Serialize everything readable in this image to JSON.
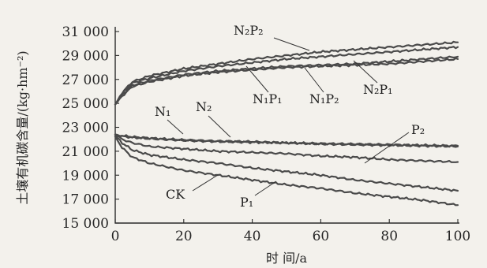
{
  "chart_data": {
    "type": "line",
    "title": "",
    "xlabel": "时 间/a",
    "ylabel": "土壤有机碳含量/(kg·hm⁻²)",
    "xlim": [
      0,
      100
    ],
    "ylim": [
      15000,
      31000
    ],
    "xticks": [
      0,
      20,
      40,
      60,
      80,
      100
    ],
    "yticks": [
      15000,
      17000,
      19000,
      21000,
      23000,
      25000,
      27000,
      29000,
      31000
    ],
    "xtick_labels": [
      "0",
      "20",
      "40",
      "60",
      "80",
      "100"
    ],
    "ytick_labels": [
      "15 000",
      "17 000",
      "19 000",
      "21 000",
      "23 000",
      "25 000",
      "27 000",
      "29 000",
      "31 000"
    ],
    "grid": false,
    "legend": "none",
    "series": [
      {
        "name": "N₂P₂",
        "color": "#4a4a4a",
        "x": [
          0,
          2,
          5,
          10,
          20,
          30,
          40,
          50,
          60,
          70,
          80,
          90,
          100
        ],
        "values": [
          24900,
          25900,
          26800,
          27300,
          27900,
          28300,
          28700,
          29000,
          29300,
          29500,
          29700,
          29900,
          30100
        ]
      },
      {
        "name": "N₂P₁",
        "color": "#4a4a4a",
        "x": [
          0,
          2,
          5,
          10,
          20,
          30,
          40,
          50,
          60,
          70,
          80,
          90,
          100
        ],
        "values": [
          24900,
          25800,
          26700,
          27100,
          27700,
          28100,
          28400,
          28700,
          28900,
          29100,
          29300,
          29500,
          29700
        ]
      },
      {
        "name": "N₁P₁",
        "color": "#4a4a4a",
        "x": [
          0,
          2,
          5,
          10,
          20,
          30,
          40,
          50,
          60,
          70,
          80,
          90,
          100
        ],
        "values": [
          24900,
          25700,
          26500,
          26900,
          27400,
          27700,
          27900,
          28100,
          28200,
          28300,
          28500,
          28700,
          28900
        ]
      },
      {
        "name": "N₁P₂",
        "color": "#4a4a4a",
        "x": [
          0,
          2,
          5,
          10,
          20,
          30,
          40,
          50,
          60,
          70,
          80,
          90,
          100
        ],
        "values": [
          24900,
          25600,
          26400,
          26800,
          27300,
          27600,
          27800,
          28000,
          28100,
          28200,
          28300,
          28500,
          28700
        ]
      },
      {
        "name": "N₁",
        "color": "#4a4a4a",
        "x": [
          0,
          2,
          5,
          10,
          20,
          30,
          40,
          50,
          60,
          70,
          80,
          90,
          100
        ],
        "values": [
          22400,
          22300,
          22200,
          22100,
          21950,
          21850,
          21800,
          21700,
          21650,
          21600,
          21550,
          21500,
          21450
        ]
      },
      {
        "name": "N₂",
        "color": "#4a4a4a",
        "x": [
          0,
          2,
          5,
          10,
          20,
          30,
          40,
          50,
          60,
          70,
          80,
          90,
          100
        ],
        "values": [
          22400,
          22250,
          22150,
          22050,
          21900,
          21800,
          21750,
          21700,
          21600,
          21550,
          21500,
          21450,
          21400
        ]
      },
      {
        "name": "P₂",
        "color": "#4a4a4a",
        "x": [
          0,
          2,
          5,
          10,
          20,
          30,
          40,
          50,
          60,
          70,
          80,
          90,
          100
        ],
        "values": [
          22400,
          22000,
          21700,
          21400,
          21200,
          21000,
          20900,
          20800,
          20600,
          20500,
          20300,
          20200,
          20100
        ]
      },
      {
        "name": "P₁",
        "color": "#4a4a4a",
        "x": [
          0,
          2,
          5,
          10,
          20,
          30,
          40,
          50,
          60,
          70,
          80,
          90,
          100
        ],
        "values": [
          22300,
          21700,
          21100,
          20700,
          20300,
          20000,
          19600,
          19300,
          19000,
          18600,
          18300,
          18000,
          17700
        ]
      },
      {
        "name": "CK",
        "color": "#4a4a4a",
        "x": [
          0,
          2,
          5,
          10,
          20,
          30,
          40,
          50,
          60,
          70,
          80,
          90,
          100
        ],
        "values": [
          22200,
          21300,
          20500,
          20000,
          19400,
          19000,
          18600,
          18200,
          17900,
          17500,
          17200,
          16900,
          16500
        ]
      }
    ]
  }
}
